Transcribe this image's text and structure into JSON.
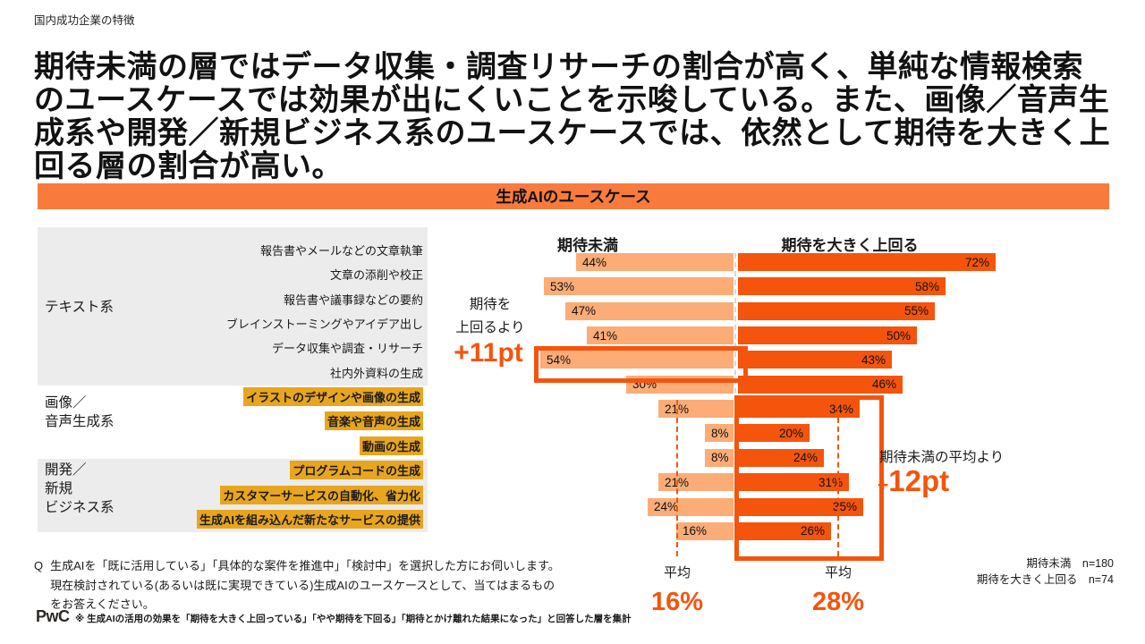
{
  "kicker": "国内成功企業の特徴",
  "headline": "期待未満の層ではデータ収集・調査リサーチの割合が高く、単純な情報検索\nのユースケースでは効果が出にくいことを示唆している。また、画像／音声生\n成系や開発／新規ビジネス系のユースケースでは、依然として期待を大きく上\n回る層の割合が高い。",
  "banner_title": "生成AIのユースケース",
  "colors": {
    "accent": "#F5540D",
    "bar_below": "#FBAC77",
    "bar_above": "#F5540D",
    "banner": "#F87B3D",
    "label_highlight": "#E8A51E",
    "group_block": "#ECECEC"
  },
  "chart_data": {
    "type": "bar",
    "orientation": "horizontal-diverging",
    "title": "生成AIのユースケース",
    "value_unit": "%",
    "categories": [
      "報告書やメールなどの文章執筆",
      "文章の添削や校正",
      "報告書や議事録などの要約",
      "ブレインストーミングやアイデア出し",
      "データ収集や調査・リサーチ",
      "社内外資料の生成",
      "イラストのデザインや画像の生成",
      "音楽や音声の生成",
      "動画の生成",
      "プログラムコードの生成",
      "カスタマーサービスの自動化、省力化",
      "生成AIを組み込んだ新たなサービスの提供"
    ],
    "groups": [
      {
        "label": "テキスト系",
        "rows": 6,
        "shaded": true,
        "highlighted_labels": false
      },
      {
        "label": "画像／\n音声生成系",
        "rows": 3,
        "shaded": false,
        "highlighted_labels": true
      },
      {
        "label": "開発／\n新規\nビジネス系",
        "rows": 3,
        "shaded": true,
        "highlighted_labels": true
      }
    ],
    "series": [
      {
        "name": "期待未満",
        "n_label": "期待未満　n=180",
        "values": [
          44,
          53,
          47,
          41,
          54,
          30,
          21,
          8,
          8,
          21,
          24,
          16
        ],
        "average": 16
      },
      {
        "name": "期待を大きく上回る",
        "n_label": "期待を大きく上回る　n=74",
        "values": [
          72,
          58,
          55,
          50,
          43,
          46,
          34,
          20,
          24,
          31,
          35,
          26
        ],
        "average": 28
      }
    ],
    "legend_position": "top",
    "annotations": {
      "left": {
        "text": "期待を\n上回るより",
        "value": "+11pt",
        "boxed_category": "データ収集や調査・リサーチ"
      },
      "right": {
        "label": "期待未満の平均より",
        "plus": "+",
        "value": "12pt",
        "boxed_categories_range": [
          6,
          11
        ]
      },
      "averages": [
        {
          "label": "平均",
          "value": "16%"
        },
        {
          "label": "平均",
          "value": "28%"
        }
      ]
    }
  },
  "samples": {
    "below": "期待未満　n=180",
    "above": "期待を大きく上回る　n=74"
  },
  "question": {
    "prefix": "Q",
    "text": "生成AIを「既に活用している」「具体的な案件を推進中」「検討中」を選択した方にお伺いします。\n現在検討されている(あるいは既に実現できている)生成AIのユースケースとして、当てはまるもの\nをお答えください。"
  },
  "footnote": "※ 生成AIの活用の効果を「期待を大きく上回っている」「やや期待を下回る」「期待とかけ離れた結果になった」と回答した層を集計",
  "logo": "PwC"
}
